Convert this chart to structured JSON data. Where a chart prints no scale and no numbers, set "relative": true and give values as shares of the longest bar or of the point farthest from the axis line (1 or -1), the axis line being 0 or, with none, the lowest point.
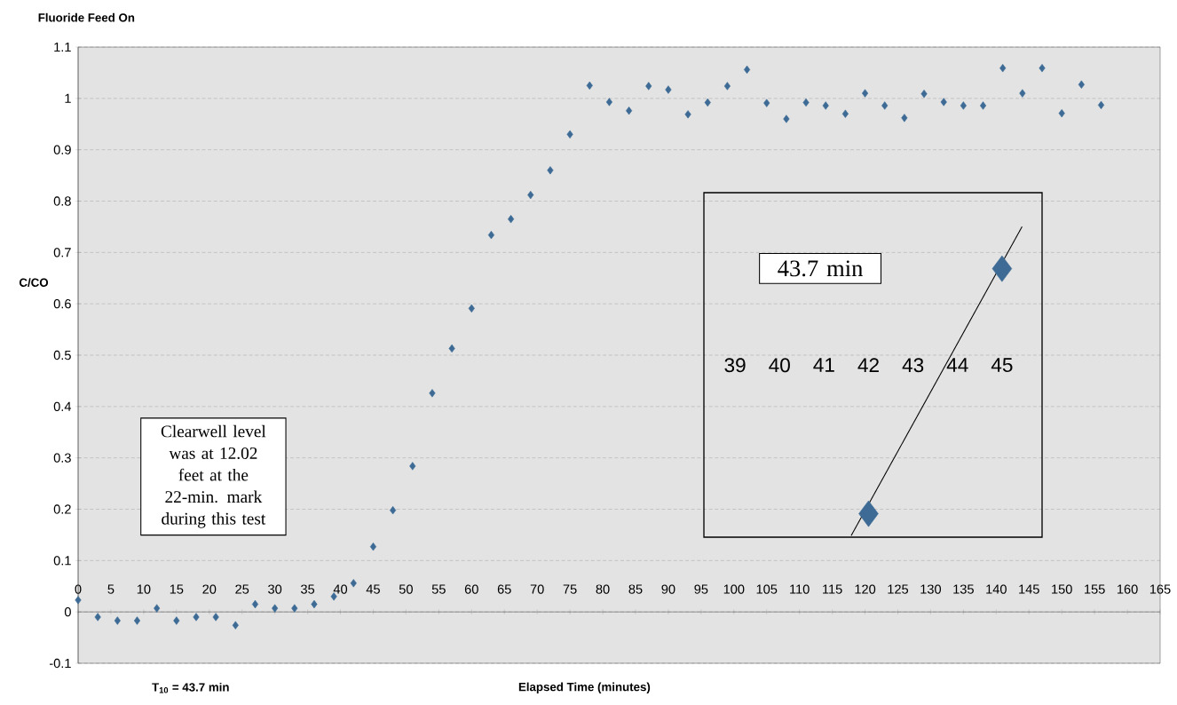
{
  "chart_data": [
    {
      "type": "scatter",
      "title": "Fluoride Feed On",
      "xlabel": "Elapsed Time (minutes)",
      "ylabel": "C/CO",
      "annotations": [
        "Clearwell level was at 12.02 feet at the 22-min. mark during this test",
        "T$_{10}$ = 43.7 min"
      ],
      "x": [
        0,
        3,
        6,
        9,
        12,
        15,
        18,
        21,
        24,
        27,
        30,
        33,
        36,
        39,
        42,
        45,
        48,
        51,
        54,
        57,
        60,
        63,
        66,
        69,
        72,
        75,
        78,
        81,
        84,
        87,
        90,
        93,
        96,
        99,
        102,
        105,
        108,
        111,
        114,
        117,
        120,
        123,
        126,
        129,
        132,
        135,
        138,
        141,
        144,
        147,
        150,
        153,
        156
      ],
      "values": [
        0.023,
        -0.01,
        -0.017,
        -0.017,
        0.007,
        -0.017,
        -0.01,
        -0.01,
        -0.026,
        0.015,
        0.007,
        0.007,
        0.015,
        0.03,
        0.056,
        0.127,
        0.198,
        0.284,
        0.426,
        0.513,
        0.591,
        0.734,
        0.765,
        0.812,
        0.86,
        0.93,
        1.025,
        0.993,
        0.976,
        1.024,
        1.017,
        0.969,
        0.992,
        1.024,
        1.056,
        0.991,
        0.96,
        0.992,
        0.986,
        0.97,
        1.01,
        0.986,
        0.962,
        1.009,
        0.993,
        0.986,
        0.986,
        1.059,
        1.01,
        1.059,
        0.971,
        1.027,
        0.987
      ],
      "color": "#3d6b95",
      "marker": "diamond",
      "grid": "y",
      "xlim": [
        0,
        165
      ],
      "xticks": [
        0,
        5,
        10,
        15,
        20,
        25,
        30,
        35,
        40,
        45,
        50,
        55,
        60,
        65,
        70,
        75,
        80,
        85,
        90,
        95,
        100,
        105,
        110,
        115,
        120,
        125,
        130,
        135,
        140,
        145,
        150,
        155,
        160,
        165
      ],
      "ylim": [
        -0.1,
        1.1
      ],
      "yticks": [
        -0.1,
        0,
        0.1,
        0.2,
        0.3,
        0.4,
        0.5,
        0.6,
        0.7,
        0.8,
        0.9,
        1,
        1.1
      ]
    },
    {
      "type": "scatter",
      "relative": true,
      "annotations": [
        "43.7 min"
      ],
      "tick_labels": "x",
      "xlim": [
        38.3,
        45.9
      ],
      "xticks": [
        39,
        40,
        41,
        42,
        43,
        44,
        45
      ],
      "series": [
        {
          "type": "scatter",
          "x": [
            42,
            45
          ],
          "values": [
            0.071,
            0.864
          ],
          "color": "#3d6b95",
          "marker": "diamond"
        },
        {
          "type": "line",
          "x": [
            41.61,
            45.45
          ],
          "values": [
            0,
            1
          ],
          "color": "#000000"
        }
      ]
    }
  ]
}
